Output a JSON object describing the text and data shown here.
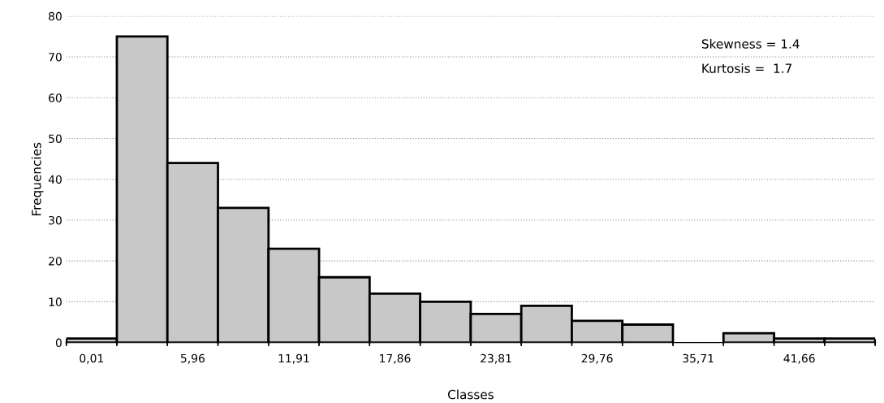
{
  "chart_data": {
    "type": "bar",
    "xlabel": "Classes",
    "ylabel": "Frequencies",
    "categories": [
      "0,01",
      null,
      "5,96",
      null,
      "11,91",
      null,
      "17,86",
      null,
      "23,81",
      null,
      "29,76",
      null,
      "35,71",
      null,
      "41,66",
      null
    ],
    "values": [
      1,
      75,
      44,
      33,
      23,
      16,
      12,
      10,
      7,
      9,
      5.3,
      4.4,
      null,
      2.3,
      1,
      1
    ],
    "color": "#c8c8c8",
    "ylim": [
      0,
      80
    ],
    "yticks": [
      0,
      10,
      20,
      30,
      40,
      50,
      60,
      70,
      80
    ],
    "grid": "y",
    "annotations": [
      "Skewness = 1.4",
      "Kurtosis =  1.7"
    ]
  }
}
